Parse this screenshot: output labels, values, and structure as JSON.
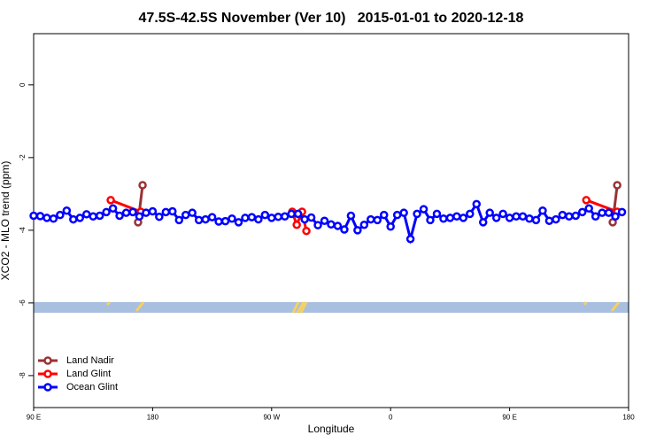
{
  "chart_data": {
    "type": "line",
    "title": "47.5S-42.5S November (Ver 10)   2015-01-01 to 2020-12-18",
    "xlabel": "Longitude",
    "ylabel": "XCO2 - MLO trend (ppm)",
    "xlim": [
      90,
      540
    ],
    "ylim": [
      -8.88,
      1.41
    ],
    "xticks": [
      {
        "value": 90,
        "label": "90 E"
      },
      {
        "value": 180,
        "label": "180"
      },
      {
        "value": 270,
        "label": "90 W"
      },
      {
        "value": 360,
        "label": "0"
      },
      {
        "value": 450,
        "label": "90 E"
      },
      {
        "value": 540,
        "label": "180"
      }
    ],
    "yticks": [
      -8,
      -6,
      -4,
      -2,
      0
    ],
    "legend": "bottom-left",
    "series": [
      {
        "name": "Land Nadir",
        "color": "#993333",
        "x": [
          169,
          172.4,
          350,
          528,
          531.4
        ],
        "values": [
          -3.78,
          -2.76,
          null,
          -3.78,
          -2.76
        ]
      },
      {
        "name": "Land Glint",
        "color": "#ff0000",
        "x": [
          148.3,
          171,
          230,
          285.6,
          289,
          293,
          296.3,
          400,
          508,
          531.4
        ],
        "values": [
          -3.17,
          -3.49,
          null,
          -3.49,
          -3.85,
          -3.49,
          -4.02,
          null,
          -3.17,
          -3.49
        ]
      },
      {
        "name": "Ocean Glint",
        "color": "#0000ff",
        "x": [
          90,
          95,
          100,
          105,
          110,
          115,
          120,
          125,
          130,
          135,
          140,
          145,
          150,
          155,
          160,
          165,
          170,
          175,
          180,
          185,
          190,
          195,
          200,
          205,
          210,
          215,
          220,
          225,
          230,
          235,
          240,
          245,
          250,
          255,
          260,
          265,
          270,
          275,
          280,
          285,
          290,
          295,
          300,
          305,
          310,
          315,
          320,
          325,
          330,
          335,
          340,
          345,
          350,
          355,
          360,
          365,
          370,
          375,
          380,
          385,
          390,
          395,
          400,
          405,
          410,
          415,
          420,
          425,
          430,
          435,
          440,
          445,
          450,
          455,
          460,
          465,
          470,
          475,
          480,
          485,
          490,
          495,
          500,
          505,
          510,
          515,
          520,
          525,
          530,
          535
        ],
        "values": [
          -3.6,
          -3.61,
          -3.66,
          -3.68,
          -3.58,
          -3.46,
          -3.7,
          -3.66,
          -3.56,
          -3.62,
          -3.6,
          -3.5,
          -3.4,
          -3.6,
          -3.52,
          -3.5,
          -3.62,
          -3.52,
          -3.48,
          -3.63,
          -3.5,
          -3.48,
          -3.72,
          -3.58,
          -3.52,
          -3.72,
          -3.7,
          -3.64,
          -3.76,
          -3.75,
          -3.68,
          -3.78,
          -3.66,
          -3.64,
          -3.7,
          -3.58,
          -3.66,
          -3.63,
          -3.62,
          -3.55,
          -3.55,
          -3.7,
          -3.65,
          -3.86,
          -3.74,
          -3.84,
          -3.88,
          -3.98,
          -3.6,
          -4.0,
          -3.85,
          -3.7,
          -3.72,
          -3.58,
          -3.9,
          -3.58,
          -3.52,
          -4.24,
          -3.55,
          -3.42,
          -3.72,
          -3.55,
          -3.68,
          -3.66,
          -3.62,
          -3.66,
          -3.55,
          -3.28,
          -3.78,
          -3.52,
          -3.66,
          -3.55,
          -3.66,
          -3.62,
          -3.62,
          -3.68,
          -3.72,
          -3.46,
          -3.74,
          -3.7,
          -3.58,
          -3.62,
          -3.6,
          -3.5,
          -3.4,
          -3.62,
          -3.52,
          -3.52,
          -3.62,
          -3.5
        ]
      }
    ]
  }
}
